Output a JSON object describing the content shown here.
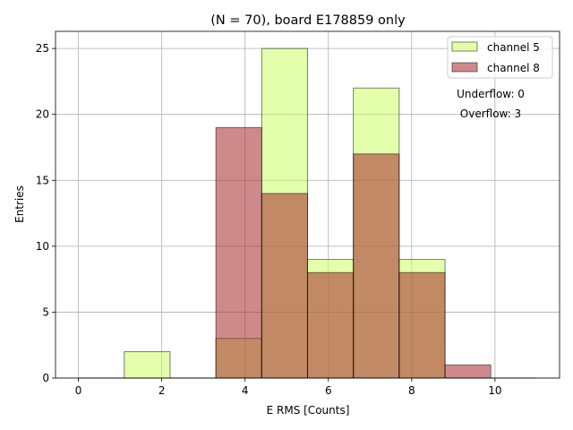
{
  "chart_data": {
    "type": "bar",
    "title": "(N = 70), board E178859 only",
    "xlabel": "E RMS [Counts]",
    "ylabel": "Entries",
    "xlim": [
      -0.55,
      11.55
    ],
    "ylim": [
      0,
      26.3
    ],
    "xticks": [
      0,
      2,
      4,
      6,
      8,
      10
    ],
    "yticks": [
      0,
      5,
      10,
      15,
      20,
      25
    ],
    "grid": true,
    "legend_position": "top-right",
    "bin_edges": [
      0,
      1.1,
      2.2,
      3.3,
      4.4,
      5.5,
      6.6,
      7.7,
      8.8,
      9.9,
      11.0
    ],
    "series": [
      {
        "name": "channel 5",
        "color": "#ccff66",
        "values": [
          0,
          2,
          0,
          3,
          25,
          9,
          22,
          9,
          0,
          0
        ]
      },
      {
        "name": "channel 8",
        "color": "#a52a2a",
        "values": [
          0,
          0,
          0,
          19,
          14,
          8,
          17,
          8,
          1,
          0
        ]
      }
    ],
    "annotations": [
      {
        "text": "Underflow: 0"
      },
      {
        "text": "Overflow: 3"
      }
    ]
  }
}
